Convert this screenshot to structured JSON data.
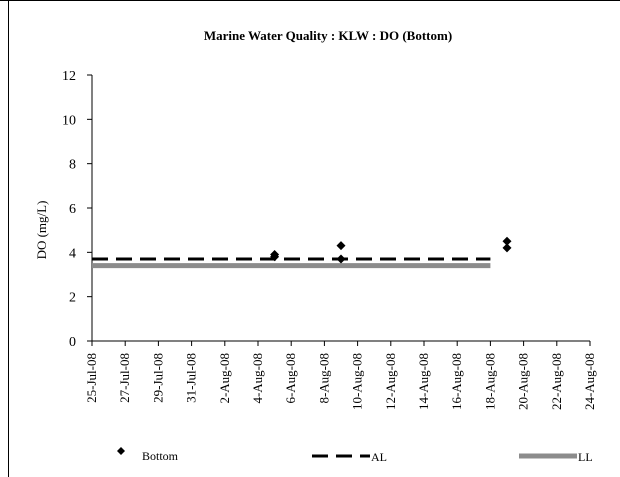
{
  "chart_data": {
    "type": "scatter",
    "title": "Marine Water Quality : KLW : DO (Bottom)",
    "xlabel": "",
    "ylabel": "DO (mg/L)",
    "xlim": [
      "2008-07-25",
      "2008-08-24"
    ],
    "ylim": [
      0,
      12
    ],
    "yticks": [
      0,
      2,
      4,
      6,
      8,
      10,
      12
    ],
    "xticks": [
      {
        "date": "2008-07-25",
        "label": "25-Jul-08"
      },
      {
        "date": "2008-07-27",
        "label": "27-Jul-08"
      },
      {
        "date": "2008-07-29",
        "label": "29-Jul-08"
      },
      {
        "date": "2008-07-31",
        "label": "31-Jul-08"
      },
      {
        "date": "2008-08-02",
        "label": "2-Aug-08"
      },
      {
        "date": "2008-08-04",
        "label": "4-Aug-08"
      },
      {
        "date": "2008-08-06",
        "label": "6-Aug-08"
      },
      {
        "date": "2008-08-08",
        "label": "8-Aug-08"
      },
      {
        "date": "2008-08-10",
        "label": "10-Aug-08"
      },
      {
        "date": "2008-08-12",
        "label": "12-Aug-08"
      },
      {
        "date": "2008-08-14",
        "label": "14-Aug-08"
      },
      {
        "date": "2008-08-16",
        "label": "16-Aug-08"
      },
      {
        "date": "2008-08-18",
        "label": "18-Aug-08"
      },
      {
        "date": "2008-08-20",
        "label": "20-Aug-08"
      },
      {
        "date": "2008-08-22",
        "label": "22-Aug-08"
      },
      {
        "date": "2008-08-24",
        "label": "24-Aug-08"
      }
    ],
    "grid": false,
    "legend_position": "bottom",
    "series": [
      {
        "name": "Bottom",
        "kind": "points",
        "marker": "diamond",
        "color": "#000000",
        "points": [
          {
            "x": "2008-08-05",
            "y": 3.9
          },
          {
            "x": "2008-08-05",
            "y": 3.8
          },
          {
            "x": "2008-08-09",
            "y": 4.3
          },
          {
            "x": "2008-08-09",
            "y": 3.7
          },
          {
            "x": "2008-08-19",
            "y": 4.5
          },
          {
            "x": "2008-08-19",
            "y": 4.2
          }
        ]
      },
      {
        "name": "AL",
        "kind": "line",
        "style": "dashed",
        "color": "#000000",
        "points": [
          {
            "x": "2008-07-25",
            "y": 3.7
          },
          {
            "x": "2008-08-18",
            "y": 3.7
          }
        ]
      },
      {
        "name": "LL",
        "kind": "line",
        "style": "solid",
        "color": "#8c8c8c",
        "points": [
          {
            "x": "2008-07-25",
            "y": 3.4
          },
          {
            "x": "2008-08-18",
            "y": 3.4
          }
        ]
      }
    ]
  }
}
